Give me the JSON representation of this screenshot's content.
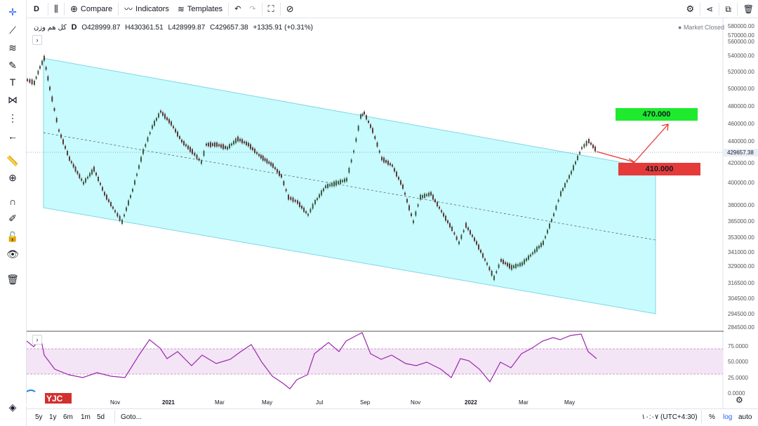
{
  "toolbar": {
    "interval": "D",
    "compare": "Compare",
    "indicators": "Indicators",
    "templates": "Templates"
  },
  "legend": {
    "symbol": "کل هم وزن",
    "interval": "D",
    "open": "O428999.87",
    "high": "H430361.51",
    "low": "L428999.87",
    "close": "C429657.38",
    "change": "+1335.91 (+0.31%)"
  },
  "market_status": "Market Closed",
  "price_tag": "429657.38",
  "annotations": {
    "target_up": "470.000",
    "target_down": "410.000"
  },
  "price_axis": [
    "580000.00",
    "570000.00",
    "560000.00",
    "540000.00",
    "520000.00",
    "500000.00",
    "480000.00",
    "460000.00",
    "440000.00",
    "420000.00",
    "400000.00",
    "380000.00",
    "365000.00",
    "353000.00",
    "341000.00",
    "329000.00",
    "316500.00",
    "304500.00",
    "294500.00",
    "284500.00"
  ],
  "rsi_axis": [
    "75.0000",
    "50.0000",
    "25.0000",
    "0.0000"
  ],
  "time_axis": [
    "Nov",
    "2021",
    "Mar",
    "May",
    "Jul",
    "Sep",
    "Nov",
    "2022",
    "Mar",
    "May"
  ],
  "bottom": {
    "ranges": [
      "5y",
      "1y",
      "6m",
      "1m",
      "5d"
    ],
    "goto": "Goto...",
    "timezone": "۱۰:۰۷ (UTC+4:30)",
    "percent": "%",
    "log": "log",
    "auto": "auto"
  },
  "watermark": "YJC",
  "colors": {
    "channel_fill": "#c8fbfd",
    "rsi_line": "#9c27b0",
    "rsi_band": "#f3e5f5",
    "up_box": "#1eeb2e",
    "down_box": "#e53a3a",
    "arrow": "#e53935",
    "accent_blue": "#2962ff"
  }
}
